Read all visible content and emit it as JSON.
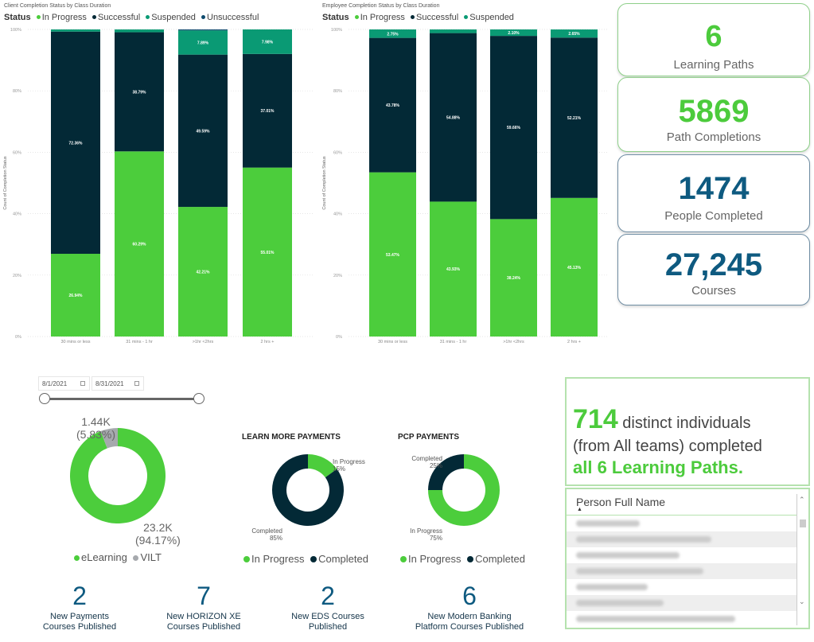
{
  "colors": {
    "in_progress": "#4ccd3c",
    "successful": "#032936",
    "suspended": "#0a9a74",
    "unsuccessful": "#0e4a6e",
    "vilt": "#a6a9ad",
    "kpi_green": "#4ccb3c",
    "kpi_blue": "#0e5a80"
  },
  "chart_data": [
    {
      "type": "bar",
      "stacked": true,
      "title": "Client Completion Status by Class Duration",
      "legend_title": "Status",
      "legend": [
        "In Progress",
        "Successful",
        "Suspended",
        "Unsuccessful"
      ],
      "legend_position": "top-left",
      "ylabel": "Count of Completion Status",
      "xlabel": "",
      "yticks": [
        "0%",
        "20%",
        "40%",
        "60%",
        "80%",
        "100%"
      ],
      "ylim": [
        0,
        100
      ],
      "grid": true,
      "categories": [
        "30 mins or less",
        "31 mins - 1 hr",
        ">1hr <2hrs",
        "2 hrs +"
      ],
      "series": [
        {
          "name": "In Progress",
          "values": [
            26.94,
            60.29,
            42.21,
            55.01
          ],
          "labels": [
            "26.94%",
            "60.29%",
            "42.21%",
            "55.01%"
          ]
        },
        {
          "name": "Successful",
          "values": [
            72.36,
            38.79,
            49.59,
            37.01
          ],
          "labels": [
            "72.36%",
            "38.79%",
            "49.59%",
            "37.01%"
          ]
        },
        {
          "name": "Suspended",
          "values": [
            0.7,
            0.92,
            7.89,
            7.98
          ],
          "labels": [
            "",
            "",
            "7.89%",
            "7.98%"
          ]
        },
        {
          "name": "Unsuccessful",
          "values": [
            0,
            0,
            0.31,
            0
          ],
          "labels": [
            "",
            "",
            "",
            ""
          ]
        }
      ]
    },
    {
      "type": "bar",
      "stacked": true,
      "title": "Employee Completion Status by Class Duration",
      "legend_title": "Status",
      "legend": [
        "In Progress",
        "Successful",
        "Suspended"
      ],
      "legend_position": "top-left",
      "ylabel": "Count of Completion Status",
      "xlabel": "",
      "yticks": [
        "0%",
        "20%",
        "40%",
        "60%",
        "80%",
        "100%"
      ],
      "ylim": [
        0,
        100
      ],
      "grid": true,
      "categories": [
        "30 mins or less",
        "31 mins - 1 hr",
        ">1hr <2hrs",
        "2 hrs +"
      ],
      "series": [
        {
          "name": "In Progress",
          "values": [
            53.47,
            43.93,
            38.24,
            45.13
          ],
          "labels": [
            "53.47%",
            "43.93%",
            "38.24%",
            "45.13%"
          ]
        },
        {
          "name": "Successful",
          "values": [
            43.78,
            54.88,
            59.66,
            52.21
          ],
          "labels": [
            "43.78%",
            "54.88%",
            "59.66%",
            "52.21%"
          ]
        },
        {
          "name": "Suspended",
          "values": [
            2.75,
            1.19,
            2.1,
            2.65
          ],
          "labels": [
            "2.75%",
            "",
            "2.10%",
            "2.65%"
          ]
        }
      ]
    },
    {
      "type": "pie",
      "donut": true,
      "title": "",
      "legend": [
        "eLearning",
        "VILT"
      ],
      "legend_position": "bottom",
      "slices": [
        {
          "name": "eLearning",
          "value": 23200,
          "percent": 94.17,
          "label_value": "23.2K",
          "label_percent": "(94.17%)"
        },
        {
          "name": "VILT",
          "value": 1440,
          "percent": 5.83,
          "label_value": "1.44K",
          "label_percent": "(5.83%)"
        }
      ]
    },
    {
      "type": "pie",
      "donut": true,
      "title": "LEARN MORE PAYMENTS",
      "legend": [
        "In Progress",
        "Completed"
      ],
      "legend_position": "bottom",
      "slices": [
        {
          "name": "In Progress",
          "percent": 15,
          "label": "In Progress",
          "label_percent": "15%"
        },
        {
          "name": "Completed",
          "percent": 85,
          "label": "Completed",
          "label_percent": "85%"
        }
      ]
    },
    {
      "type": "pie",
      "donut": true,
      "title": "PCP PAYMENTS",
      "legend": [
        "In Progress",
        "Completed"
      ],
      "legend_position": "bottom",
      "slices": [
        {
          "name": "In Progress",
          "percent": 75,
          "label": "In Progress",
          "label_percent": "75%"
        },
        {
          "name": "Completed",
          "percent": 25,
          "label": "Completed",
          "label_percent": "25%"
        }
      ]
    }
  ],
  "kpis": [
    {
      "value": "6",
      "label": "Learning Paths",
      "style": "green"
    },
    {
      "value": "5869",
      "label": "Path Completions",
      "style": "green"
    },
    {
      "value": "1474",
      "label": "People Completed",
      "style": "blue"
    },
    {
      "value": "27,245",
      "label": "Courses",
      "style": "blue"
    }
  ],
  "date_slicer": {
    "start": "8/1/2021",
    "end": "8/31/2021",
    "range_fraction": [
      0,
      1
    ]
  },
  "published": [
    {
      "count": "2",
      "line1": "New Payments",
      "line2": "Courses Published"
    },
    {
      "count": "7",
      "line1": "New HORIZON XE",
      "line2": "Courses Published"
    },
    {
      "count": "2",
      "line1": "New EDS Courses",
      "line2": "Published"
    },
    {
      "count": "6",
      "line1": "New Modern Banking",
      "line2": "Platform Courses Published"
    }
  ],
  "summary": {
    "count": "714",
    "text1": " distinct individuals",
    "text2": "(from All teams) completed",
    "text3": "all 6 Learning Paths."
  },
  "person_table": {
    "column_header": "Person Full Name",
    "sort_indicator": "▲",
    "rows_redacted": 7
  }
}
